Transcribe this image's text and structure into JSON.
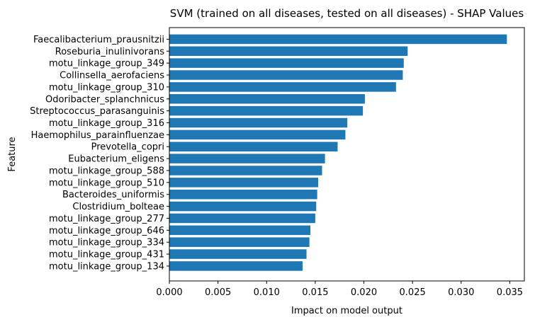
{
  "chart_data": {
    "type": "bar",
    "orientation": "horizontal",
    "title": "SVM (trained on all diseases, tested on all diseases) -  SHAP Values",
    "xlabel": "Impact on model output",
    "ylabel": "Feature",
    "xlim": [
      0,
      0.0365
    ],
    "xticks": [
      0.0,
      0.005,
      0.01,
      0.015,
      0.02,
      0.025,
      0.03,
      0.035
    ],
    "xtick_labels": [
      "0.000",
      "0.005",
      "0.010",
      "0.015",
      "0.020",
      "0.025",
      "0.030",
      "0.035"
    ],
    "grid": false,
    "bar_color": "#1f77b4",
    "categories": [
      "Faecalibacterium_prausnitzii",
      "Roseburia_inulinivorans",
      "motu_linkage_group_349",
      "Collinsella_aerofaciens",
      "motu_linkage_group_310",
      "Odoribacter_splanchnicus",
      "Streptococcus_parasanguinis",
      "motu_linkage_group_316",
      "Haemophilus_parainfluenzae",
      "Prevotella_copri",
      "Eubacterium_eligens",
      "motu_linkage_group_588",
      "motu_linkage_group_510",
      "Bacteroides_uniformis",
      "Clostridium_bolteae",
      "motu_linkage_group_277",
      "motu_linkage_group_646",
      "motu_linkage_group_334",
      "motu_linkage_group_431",
      "motu_linkage_group_134"
    ],
    "values": [
      0.0347,
      0.0245,
      0.0241,
      0.024,
      0.0233,
      0.0201,
      0.0199,
      0.0183,
      0.0181,
      0.0173,
      0.016,
      0.0157,
      0.0153,
      0.0152,
      0.0151,
      0.015,
      0.0145,
      0.0144,
      0.0141,
      0.0137
    ]
  }
}
